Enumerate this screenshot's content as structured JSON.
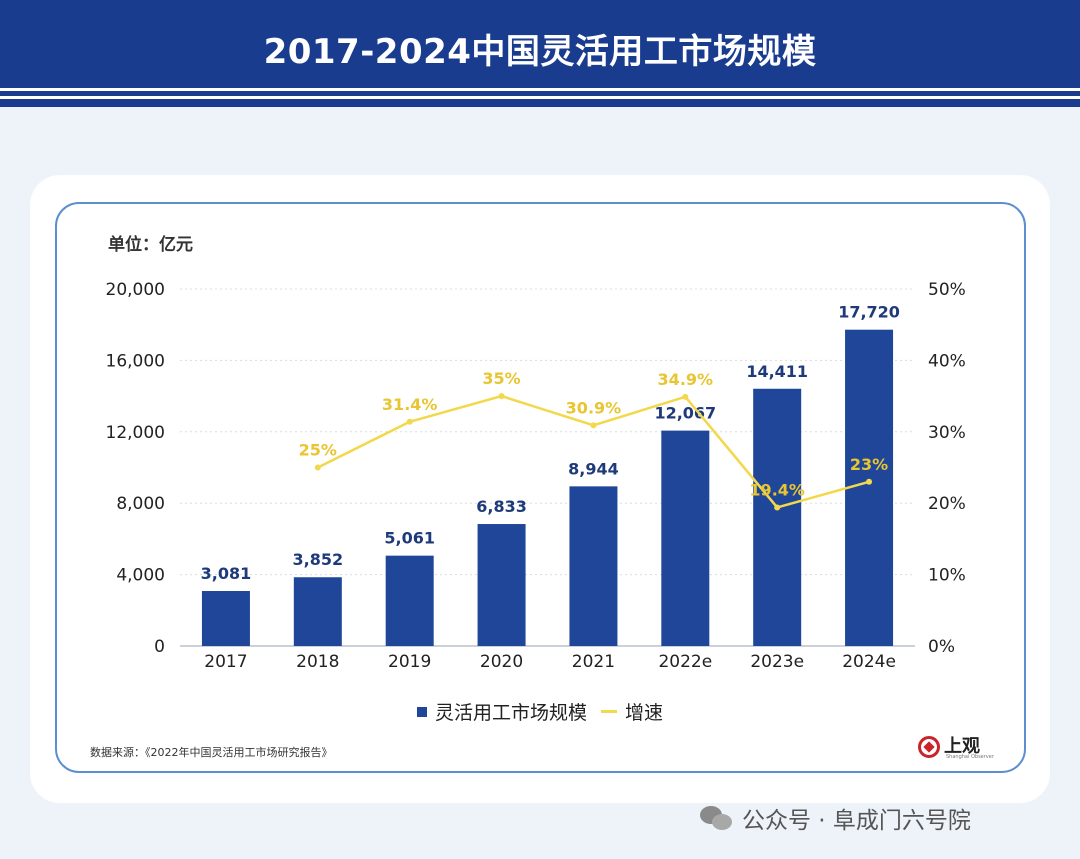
{
  "header": {
    "title": "2017-2024中国灵活用工市场规模"
  },
  "unit_label": "单位：亿元",
  "legend": {
    "bar_label": "灵活用工市场规模",
    "line_label": "增速"
  },
  "source": "数据来源：《2022年中国灵活用工市场研究报告》",
  "logo": {
    "text": "上观",
    "sub": "Shanghai Observer"
  },
  "watermark": {
    "text": "公众号 · 阜成门六号院"
  },
  "colors": {
    "bar": "#1f4699",
    "line": "#f2d84a",
    "header": "#1a3c8f",
    "label": "#1f3a7a"
  },
  "chart_data": {
    "type": "bar",
    "categories": [
      "2017",
      "2018",
      "2019",
      "2020",
      "2021",
      "2022e",
      "2023e",
      "2024e"
    ],
    "series": [
      {
        "name": "灵活用工市场规模",
        "type": "bar",
        "axis": "left",
        "values": [
          3081,
          3852,
          5061,
          6833,
          8944,
          12067,
          14411,
          17720
        ],
        "labels": [
          "3,081",
          "3,852",
          "5,061",
          "6,833",
          "8,944",
          "12,067",
          "14,411",
          "17,720"
        ]
      },
      {
        "name": "增速",
        "type": "line",
        "axis": "right",
        "values": [
          null,
          25,
          31.4,
          35,
          30.9,
          34.9,
          19.4,
          23
        ],
        "labels": [
          "",
          "25%",
          "31.4%",
          "35%",
          "30.9%",
          "34.9%",
          "19.4%",
          "23%"
        ]
      }
    ],
    "left_axis": {
      "min": 0,
      "max": 20000,
      "ticks": [
        "0",
        "4,000",
        "8,000",
        "12,000",
        "16,000",
        "20,000"
      ]
    },
    "right_axis": {
      "min": 0,
      "max": 50,
      "ticks": [
        "0%",
        "10%",
        "20%",
        "30%",
        "40%",
        "50%"
      ]
    },
    "grid": true,
    "legend_position": "bottom-center"
  }
}
